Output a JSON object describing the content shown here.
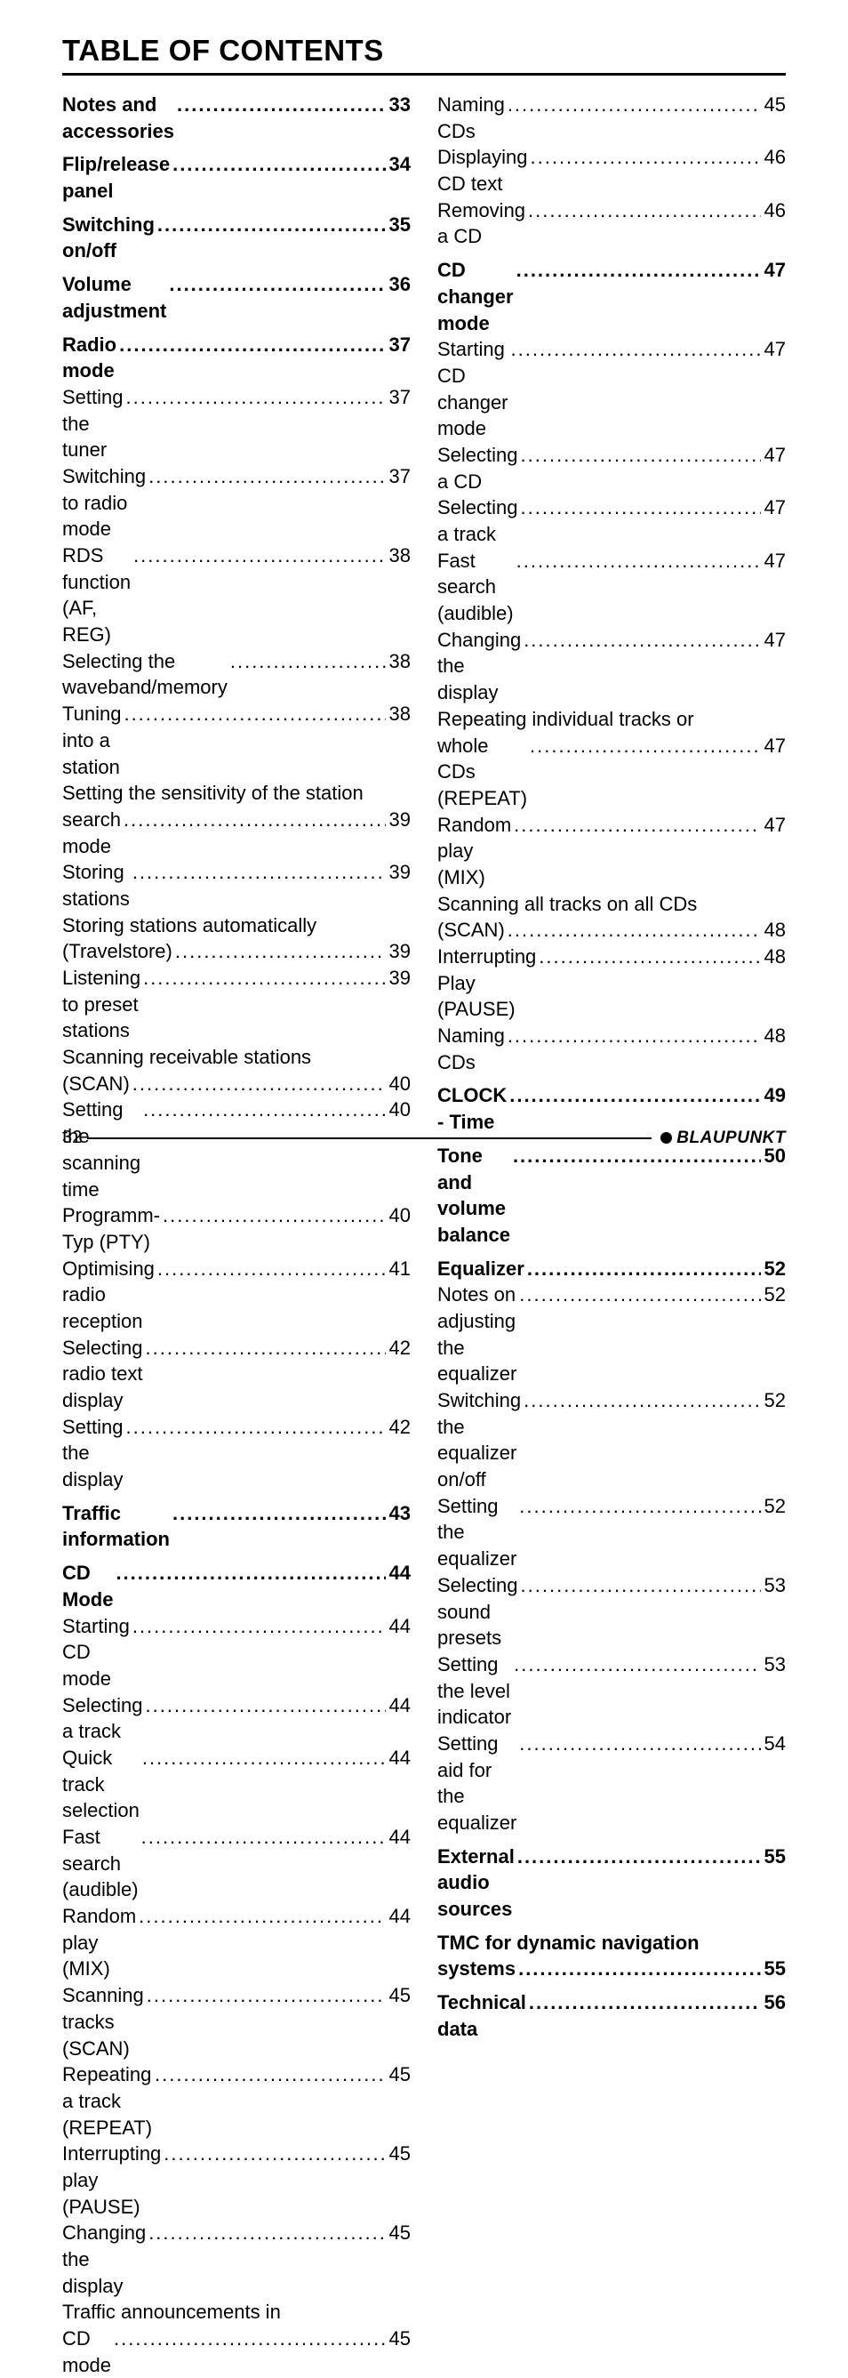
{
  "title": "TABLE OF CONTENTS",
  "page_number": "32",
  "brand": "BLAUPUNKT",
  "left": [
    {
      "label": "Notes and accessories",
      "page": "33",
      "section": true
    },
    {
      "label": "Flip/release panel",
      "page": "34",
      "section": true
    },
    {
      "label": "Switching on/off",
      "page": "35",
      "section": true
    },
    {
      "label": "Volume adjustment",
      "page": "36",
      "section": true
    },
    {
      "label": "Radio mode",
      "page": "37",
      "section": true
    },
    {
      "label": "Setting the tuner",
      "page": "37"
    },
    {
      "label": "Switching to radio mode",
      "page": "37"
    },
    {
      "label": "RDS function (AF, REG)",
      "page": "38"
    },
    {
      "label": "Selecting the waveband/memory",
      "page": "38"
    },
    {
      "label": "Tuning into a station",
      "page": "38"
    },
    {
      "label": "Setting the sensitivity of the station",
      "nopage": true
    },
    {
      "label": "search mode",
      "page": "39"
    },
    {
      "label": "Storing stations",
      "page": "39"
    },
    {
      "label": "Storing stations automatically",
      "nopage": true
    },
    {
      "label": "(Travelstore)",
      "page": "39"
    },
    {
      "label": "Listening to preset stations",
      "page": "39"
    },
    {
      "label": "Scanning receivable stations",
      "nopage": true
    },
    {
      "label": "(SCAN)",
      "page": "40"
    },
    {
      "label": "Setting the scanning time",
      "page": "40"
    },
    {
      "label": "Programm-Typ (PTY)",
      "page": "40"
    },
    {
      "label": "Optimising radio reception",
      "page": "41"
    },
    {
      "label": "Selecting radio text display",
      "page": "42"
    },
    {
      "label": "Setting the display",
      "page": "42"
    },
    {
      "label": "Traffic information",
      "page": "43",
      "section": true
    },
    {
      "label": "CD Mode",
      "page": "44",
      "section": true
    },
    {
      "label": "Starting CD mode",
      "page": "44"
    },
    {
      "label": "Selecting a track",
      "page": "44"
    },
    {
      "label": "Quick track selection",
      "page": "44"
    },
    {
      "label": "Fast search (audible)",
      "page": "44"
    },
    {
      "label": "Random play (MIX)",
      "page": "44"
    },
    {
      "label": "Scanning tracks (SCAN)",
      "page": "45"
    },
    {
      "label": "Repeating a track (REPEAT)",
      "page": "45"
    },
    {
      "label": "Interrupting play (PAUSE)",
      "page": "45"
    },
    {
      "label": "Changing the display",
      "page": "45"
    },
    {
      "label": "Traffic announcements in",
      "nopage": true
    },
    {
      "label": "CD mode",
      "page": "45"
    }
  ],
  "right": [
    {
      "label": "Naming CDs",
      "page": "45"
    },
    {
      "label": "Displaying CD text",
      "page": "46"
    },
    {
      "label": "Removing a CD",
      "page": "46"
    },
    {
      "label": "CD changer mode",
      "page": "47",
      "section": true
    },
    {
      "label": "Starting CD changer mode",
      "page": "47"
    },
    {
      "label": "Selecting a CD",
      "page": "47"
    },
    {
      "label": "Selecting a track",
      "page": "47"
    },
    {
      "label": "Fast search (audible)",
      "page": "47"
    },
    {
      "label": "Changing the display",
      "page": "47"
    },
    {
      "label": "Repeating individual tracks or",
      "nopage": true
    },
    {
      "label": "whole CDs (REPEAT)",
      "page": "47"
    },
    {
      "label": "Random play (MIX)",
      "page": "47"
    },
    {
      "label": "Scanning all tracks on all CDs",
      "nopage": true
    },
    {
      "label": "(SCAN)",
      "page": "48"
    },
    {
      "label": "Interrupting Play (PAUSE)",
      "page": "48"
    },
    {
      "label": "Naming CDs",
      "page": "48"
    },
    {
      "label": "CLOCK - Time",
      "page": "49",
      "section": true
    },
    {
      "label": "Tone and volume balance",
      "page": "50",
      "section": true
    },
    {
      "label": "Equalizer",
      "page": "52",
      "section": true
    },
    {
      "label": "Notes on adjusting the equalizer",
      "page": "52"
    },
    {
      "label": "Switching the equalizer on/off",
      "page": "52"
    },
    {
      "label": "Setting the equalizer",
      "page": "52"
    },
    {
      "label": "Selecting sound presets",
      "page": "53"
    },
    {
      "label": "Setting the level indicator",
      "page": "53"
    },
    {
      "label": "Setting aid for the equalizer",
      "page": "54"
    },
    {
      "label": "External audio sources",
      "page": "55",
      "section": true
    },
    {
      "label": "TMC for dynamic navigation",
      "nopage": true,
      "section": true
    },
    {
      "label": "systems",
      "page": "55",
      "section": true,
      "nosep": true
    },
    {
      "label": "Technical data",
      "page": "56",
      "section": true
    }
  ]
}
